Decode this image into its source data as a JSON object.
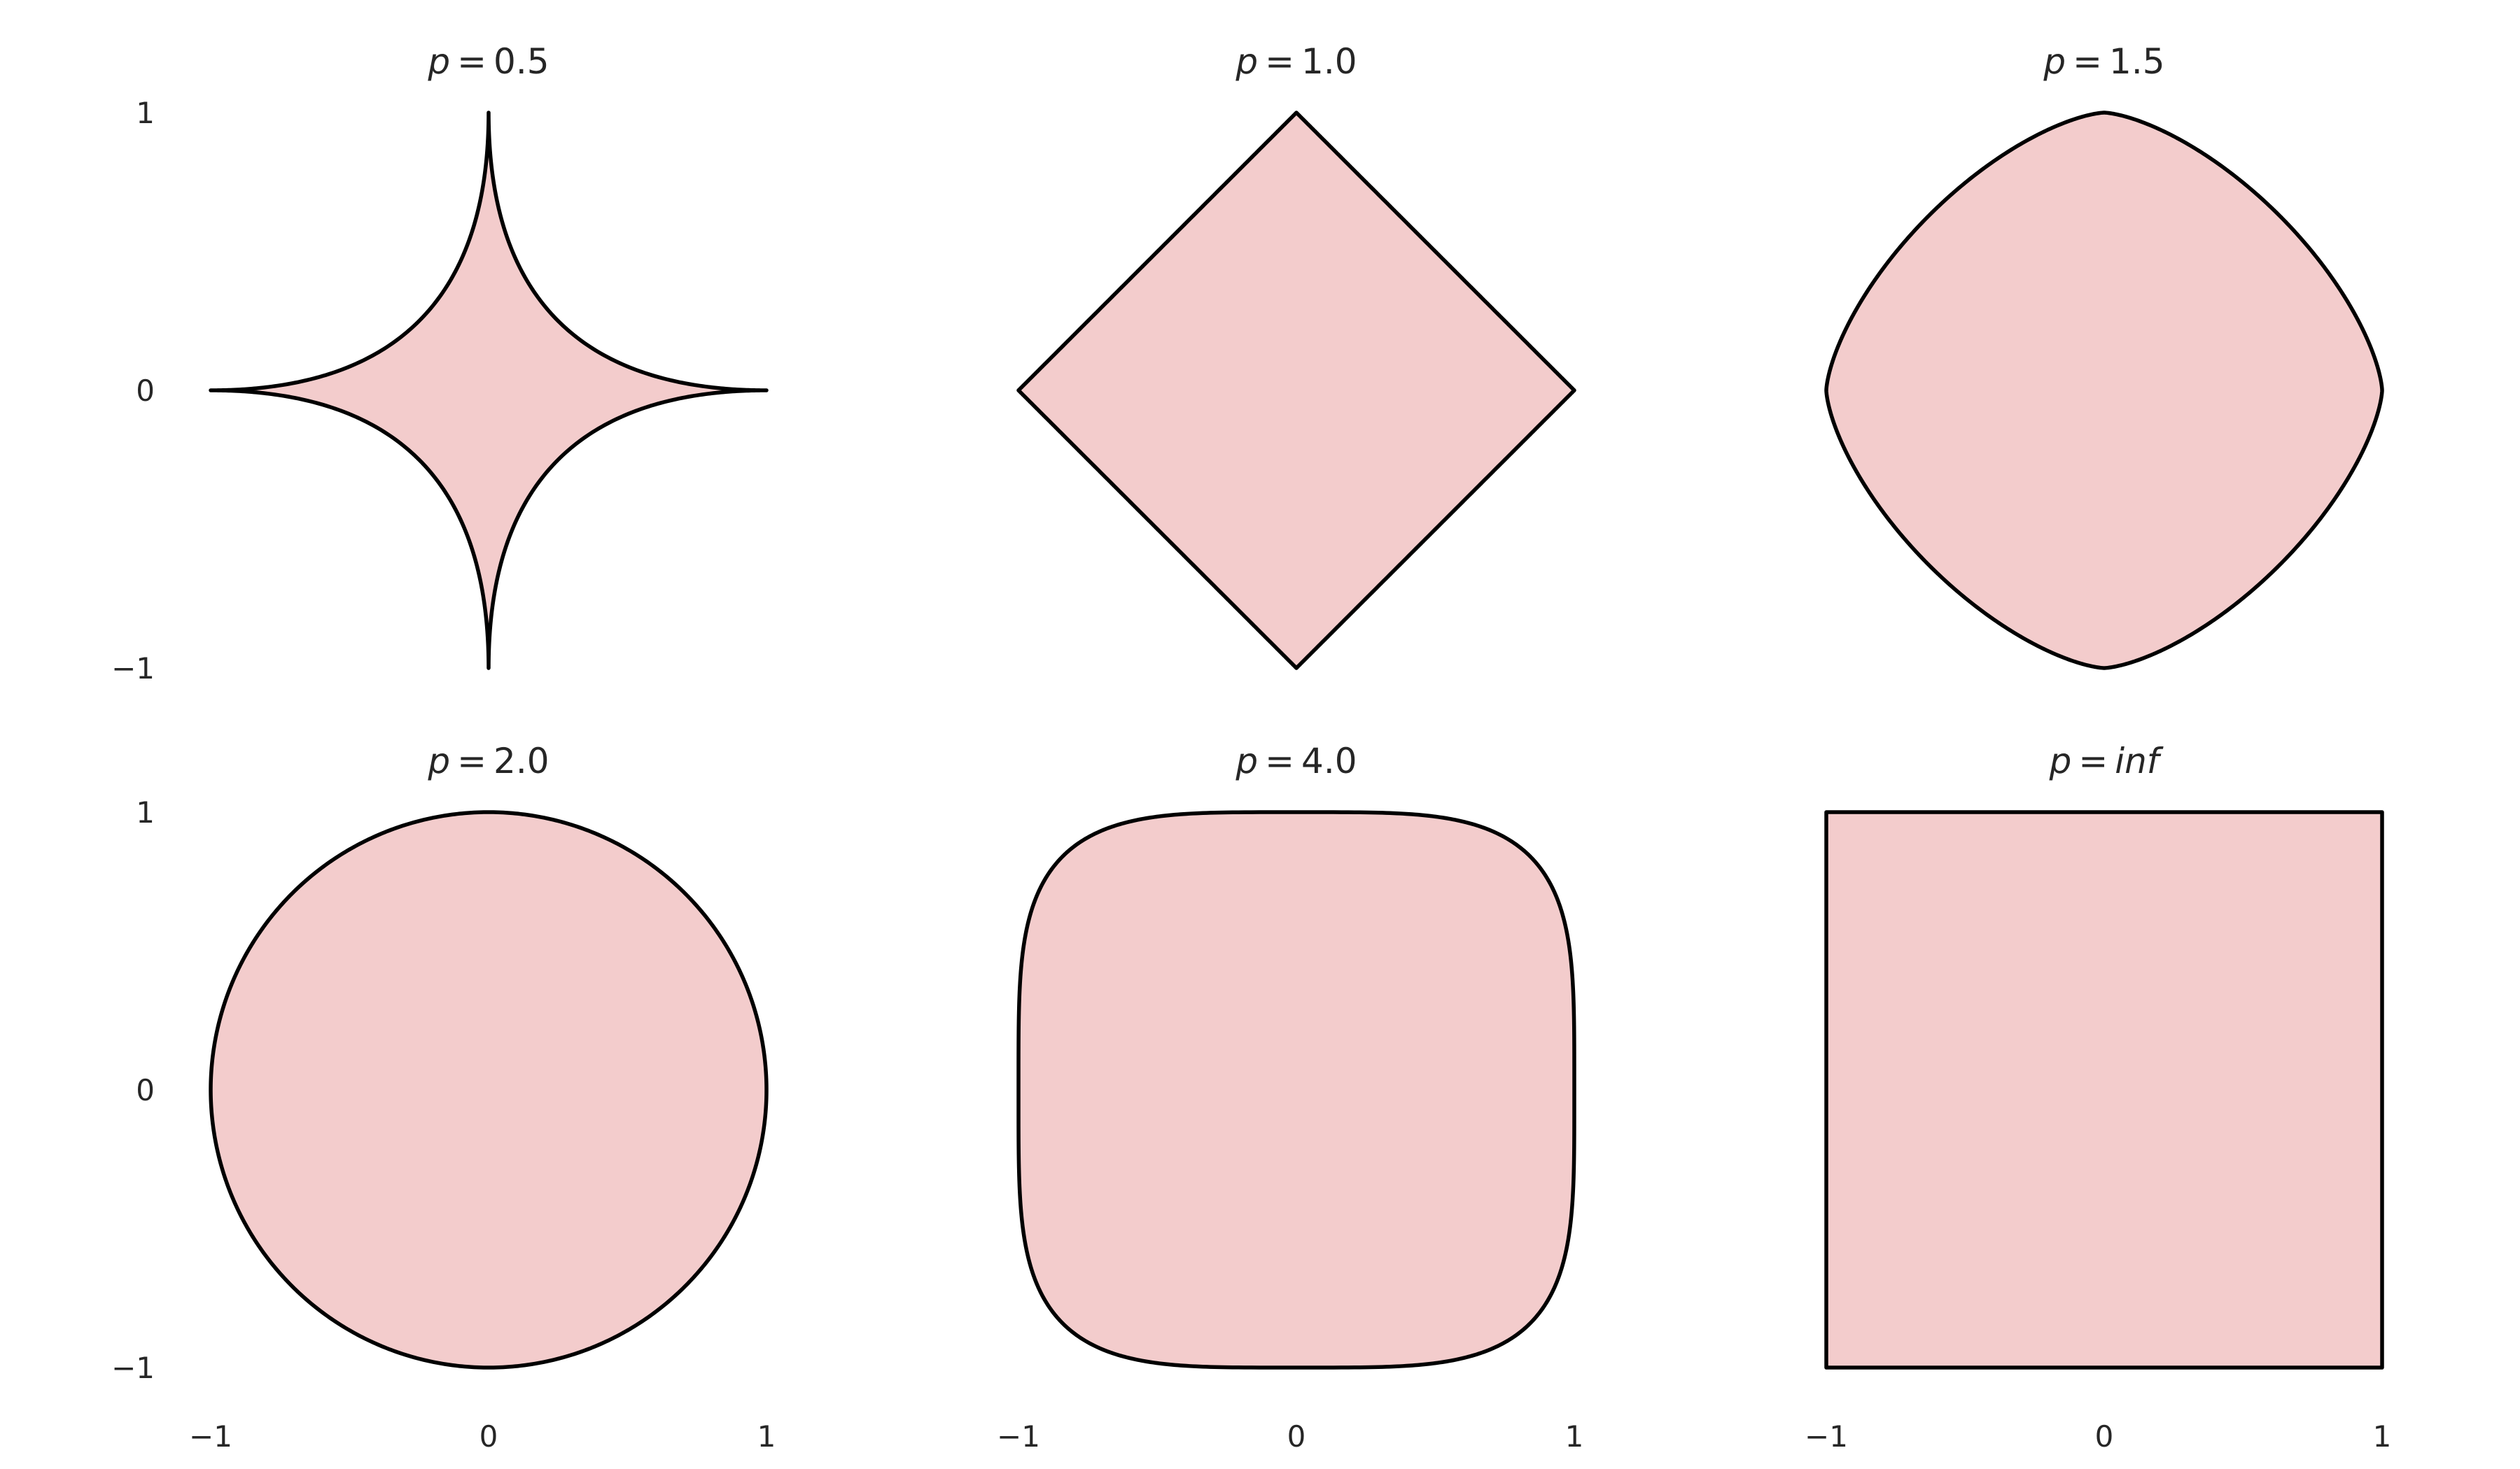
{
  "chart_data": {
    "type": "area",
    "layout": {
      "rows": 2,
      "cols": 3,
      "sharex": true,
      "sharey": true
    },
    "fill_color": "#f3cccc",
    "edge_color": "#000000",
    "xlim": [
      -1,
      1
    ],
    "ylim": [
      -1,
      1
    ],
    "xticks": [
      -1,
      0,
      1
    ],
    "yticks": [
      -1,
      0,
      1
    ],
    "xtick_labels": [
      "−1",
      "0",
      "1"
    ],
    "ytick_labels": [
      "−1",
      "0",
      "1"
    ],
    "grid": false,
    "frame": false,
    "panels": [
      {
        "title_var": "p",
        "title_value": "0.5",
        "p": 0.5
      },
      {
        "title_var": "p",
        "title_value": "1.0",
        "p": 1.0
      },
      {
        "title_var": "p",
        "title_value": "1.5",
        "p": 1.5
      },
      {
        "title_var": "p",
        "title_value": "2.0",
        "p": 2.0
      },
      {
        "title_var": "p",
        "title_value": "4.0",
        "p": 4.0
      },
      {
        "title_var": "p",
        "title_value": "inf",
        "p": "inf",
        "title_value_italic": true
      }
    ]
  }
}
